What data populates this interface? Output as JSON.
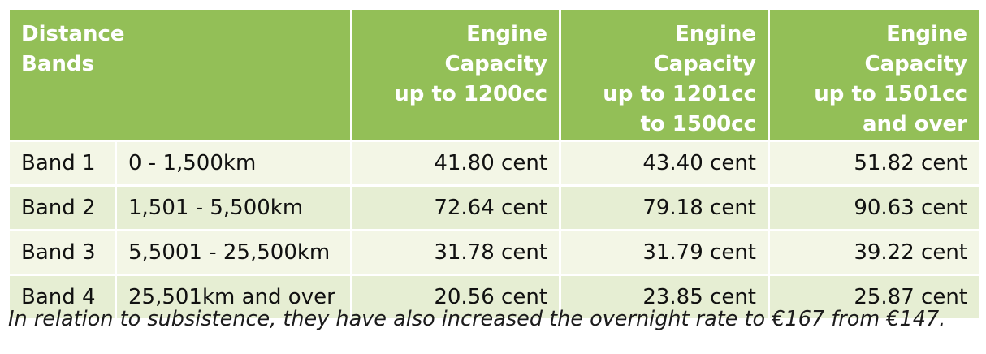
{
  "table": {
    "headers": {
      "distance_bands": [
        "Distance",
        "Bands"
      ],
      "capacity_1": [
        "Engine Capacity",
        "up to 1200cc"
      ],
      "capacity_2": [
        "Engine Capacity",
        "up to 1201cc",
        "to 1500cc"
      ],
      "capacity_3": [
        "Engine Capacity",
        "up to 1501cc",
        "and over"
      ]
    },
    "rows": [
      {
        "band": "Band 1",
        "range": "0 - 1,500km",
        "c1": "41.80 cent",
        "c2": "43.40 cent",
        "c3": "51.82 cent"
      },
      {
        "band": "Band 2",
        "range": "1,501 - 5,500km",
        "c1": "72.64 cent",
        "c2": "79.18 cent",
        "c3": "90.63 cent"
      },
      {
        "band": "Band 3",
        "range": "5,5001 - 25,500km",
        "c1": "31.78 cent",
        "c2": "31.79 cent",
        "c3": "39.22 cent"
      },
      {
        "band": "Band 4",
        "range": "25,501km and over",
        "c1": "20.56 cent",
        "c2": "23.85 cent",
        "c3": "25.87 cent"
      }
    ]
  },
  "note": "In relation to subsistence, they have also increased the overnight rate to €167 from €147.",
  "colors": {
    "header_green": "#93bf57",
    "row_light": "#f3f6e6",
    "row_dark": "#e6eed3"
  }
}
